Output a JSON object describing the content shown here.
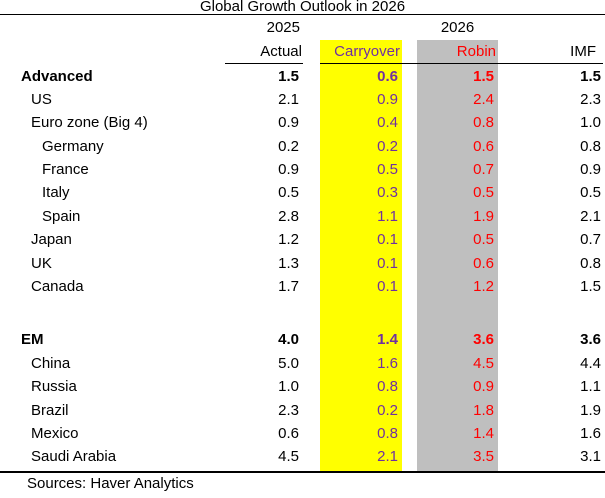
{
  "title": "Global Growth Outlook in 2026",
  "header": {
    "year_left": "2025",
    "year_right": "2026",
    "columns": [
      "Actual",
      "Carryover",
      "Robin",
      "IMF"
    ]
  },
  "colors": {
    "carryover_highlight": "#FFFF00",
    "robin_highlight": "#BFBFBF",
    "carryover_text": "#7030A0",
    "robin_text": "#FF0000",
    "text": "#000000"
  },
  "footer": {
    "sources": "Sources: Haver Analytics"
  },
  "chart_data": {
    "type": "table",
    "title": "Global Growth Outlook in 2026",
    "column_groups": [
      {
        "label": "2025",
        "columns": [
          "Actual"
        ]
      },
      {
        "label": "2026",
        "columns": [
          "Carryover",
          "Robin"
        ]
      }
    ],
    "columns": [
      "Actual",
      "Carryover",
      "Robin",
      "IMF"
    ],
    "rows": [
      {
        "label": "Advanced",
        "indent": 0,
        "bold": true,
        "values": [
          "1.5",
          "0.6",
          "1.5",
          "1.5"
        ]
      },
      {
        "label": "US",
        "indent": 1,
        "bold": false,
        "values": [
          "2.1",
          "0.9",
          "2.4",
          "2.3"
        ]
      },
      {
        "label": "Euro zone (Big 4)",
        "indent": 1,
        "bold": false,
        "values": [
          "0.9",
          "0.4",
          "0.8",
          "1.0"
        ]
      },
      {
        "label": "Germany",
        "indent": 2,
        "bold": false,
        "values": [
          "0.2",
          "0.2",
          "0.6",
          "0.8"
        ]
      },
      {
        "label": "France",
        "indent": 2,
        "bold": false,
        "values": [
          "0.9",
          "0.5",
          "0.7",
          "0.9"
        ]
      },
      {
        "label": "Italy",
        "indent": 2,
        "bold": false,
        "values": [
          "0.5",
          "0.3",
          "0.5",
          "0.5"
        ]
      },
      {
        "label": "Spain",
        "indent": 2,
        "bold": false,
        "values": [
          "2.8",
          "1.1",
          "1.9",
          "2.1"
        ]
      },
      {
        "label": "Japan",
        "indent": 1,
        "bold": false,
        "values": [
          "1.2",
          "0.1",
          "0.5",
          "0.7"
        ]
      },
      {
        "label": "UK",
        "indent": 1,
        "bold": false,
        "values": [
          "1.3",
          "0.1",
          "0.6",
          "0.8"
        ]
      },
      {
        "label": "Canada",
        "indent": 1,
        "bold": false,
        "values": [
          "1.7",
          "0.1",
          "1.2",
          "1.5"
        ]
      },
      {
        "spacer": true
      },
      {
        "label": "EM",
        "indent": 0,
        "bold": true,
        "values": [
          "4.0",
          "1.4",
          "3.6",
          "3.6"
        ]
      },
      {
        "label": "China",
        "indent": 1,
        "bold": false,
        "values": [
          "5.0",
          "1.6",
          "4.5",
          "4.4"
        ]
      },
      {
        "label": "Russia",
        "indent": 1,
        "bold": false,
        "values": [
          "1.0",
          "0.8",
          "0.9",
          "1.1"
        ]
      },
      {
        "label": "Brazil",
        "indent": 1,
        "bold": false,
        "values": [
          "2.3",
          "0.2",
          "1.8",
          "1.9"
        ]
      },
      {
        "label": "Mexico",
        "indent": 1,
        "bold": false,
        "values": [
          "0.6",
          "0.8",
          "1.4",
          "1.6"
        ]
      },
      {
        "label": "Saudi Arabia",
        "indent": 1,
        "bold": false,
        "values": [
          "4.5",
          "2.1",
          "3.5",
          "3.1"
        ]
      }
    ],
    "source": "Sources: Haver Analytics",
    "highlights": {
      "Carryover": "yellow column highlight",
      "Robin": "gray column highlight"
    }
  }
}
